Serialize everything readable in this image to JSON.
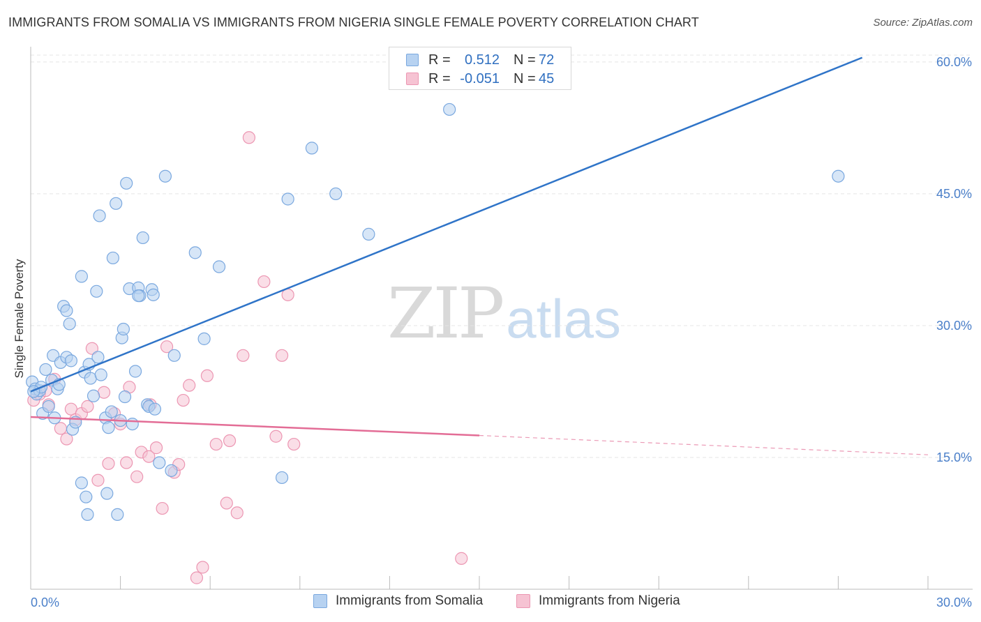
{
  "header": {
    "title": "IMMIGRANTS FROM SOMALIA VS IMMIGRANTS FROM NIGERIA SINGLE FEMALE POVERTY CORRELATION CHART",
    "source": "Source: ZipAtlas.com"
  },
  "watermark": {
    "zip": "ZIP",
    "atlas": "atlas"
  },
  "colors": {
    "somalia_fill": "#b7d2f1",
    "somalia_stroke": "#7aa8df",
    "somalia_line": "#2f74c8",
    "nigeria_fill": "#f6c3d3",
    "nigeria_stroke": "#ec96b2",
    "nigeria_line": "#e36d96",
    "axis_text": "#4a7fc9",
    "grid": "#e5e5e5"
  },
  "legend": {
    "somalia": {
      "r_label": "R =",
      "r_value": "0.512",
      "n_label": "N =",
      "n_value": "72"
    },
    "nigeria": {
      "r_label": "R =",
      "r_value": "-0.051",
      "n_label": "N =",
      "n_value": "45"
    }
  },
  "chart_data": {
    "type": "scatter",
    "title": "IMMIGRANTS FROM SOMALIA VS IMMIGRANTS FROM NIGERIA SINGLE FEMALE POVERTY CORRELATION CHART",
    "xlabel": "",
    "ylabel": "Single Female Poverty",
    "xlim": [
      0,
      30
    ],
    "ylim": [
      0,
      61.5
    ],
    "x_tick_labels": [
      "0.0%",
      "30.0%"
    ],
    "y_ticks": [
      15,
      30,
      45,
      60
    ],
    "y_tick_labels": [
      "15.0%",
      "30.0%",
      "45.0%",
      "60.0%"
    ],
    "grid": true,
    "legend_position": "top-center",
    "series": [
      {
        "name": "Immigrants from Somalia",
        "color": "#7aa8df",
        "trend": {
          "x": [
            0.0,
            27.8
          ],
          "y": [
            22.5,
            60.5
          ],
          "style": "solid"
        },
        "points": [
          [
            0.05,
            23.6
          ],
          [
            0.15,
            22.8
          ],
          [
            0.2,
            22.2
          ],
          [
            0.3,
            22.6
          ],
          [
            0.35,
            23.0
          ],
          [
            0.4,
            20.0
          ],
          [
            0.5,
            25.0
          ],
          [
            0.6,
            20.8
          ],
          [
            0.7,
            23.8
          ],
          [
            0.75,
            26.6
          ],
          [
            0.8,
            19.5
          ],
          [
            0.9,
            22.8
          ],
          [
            0.95,
            23.3
          ],
          [
            1.0,
            25.8
          ],
          [
            1.1,
            32.2
          ],
          [
            1.2,
            31.7
          ],
          [
            1.2,
            26.4
          ],
          [
            1.3,
            30.2
          ],
          [
            1.35,
            26.0
          ],
          [
            1.4,
            18.2
          ],
          [
            1.5,
            19.0
          ],
          [
            1.7,
            35.6
          ],
          [
            1.7,
            12.1
          ],
          [
            1.8,
            24.7
          ],
          [
            1.85,
            10.5
          ],
          [
            1.9,
            8.5
          ],
          [
            1.95,
            25.6
          ],
          [
            2.0,
            24.0
          ],
          [
            2.1,
            22.0
          ],
          [
            2.2,
            33.9
          ],
          [
            2.25,
            26.4
          ],
          [
            2.3,
            42.5
          ],
          [
            2.35,
            24.4
          ],
          [
            2.5,
            19.5
          ],
          [
            2.55,
            10.9
          ],
          [
            2.6,
            18.4
          ],
          [
            2.7,
            20.2
          ],
          [
            2.75,
            37.7
          ],
          [
            2.85,
            43.9
          ],
          [
            2.9,
            8.5
          ],
          [
            3.0,
            19.2
          ],
          [
            3.05,
            28.6
          ],
          [
            3.1,
            29.6
          ],
          [
            3.15,
            21.9
          ],
          [
            3.2,
            46.2
          ],
          [
            3.3,
            34.2
          ],
          [
            3.4,
            18.8
          ],
          [
            3.5,
            24.8
          ],
          [
            3.6,
            34.3
          ],
          [
            3.65,
            33.4
          ],
          [
            3.75,
            40.0
          ],
          [
            3.9,
            21.0
          ],
          [
            3.95,
            20.8
          ],
          [
            4.05,
            34.1
          ],
          [
            4.1,
            33.5
          ],
          [
            4.15,
            20.5
          ],
          [
            4.3,
            14.4
          ],
          [
            4.5,
            47.0
          ],
          [
            4.7,
            13.5
          ],
          [
            4.8,
            26.6
          ],
          [
            5.5,
            38.3
          ],
          [
            5.8,
            28.5
          ],
          [
            6.3,
            36.7
          ],
          [
            8.4,
            12.7
          ],
          [
            8.6,
            44.4
          ],
          [
            9.4,
            50.2
          ],
          [
            10.2,
            45.0
          ],
          [
            11.3,
            40.4
          ],
          [
            14.0,
            54.6
          ],
          [
            27.0,
            47.0
          ],
          [
            0.1,
            22.5
          ],
          [
            3.6,
            33.4
          ]
        ]
      },
      {
        "name": "Immigrants from Nigeria",
        "color": "#ec96b2",
        "trend": {
          "x": [
            0.0,
            15.0
          ],
          "y": [
            19.6,
            17.5
          ],
          "style": "solid",
          "dashed_to": [
            30.0,
            15.3
          ]
        },
        "points": [
          [
            0.1,
            21.5
          ],
          [
            0.3,
            22.2
          ],
          [
            0.5,
            22.6
          ],
          [
            0.6,
            21.0
          ],
          [
            0.8,
            23.9
          ],
          [
            1.0,
            18.3
          ],
          [
            1.2,
            17.1
          ],
          [
            1.35,
            20.5
          ],
          [
            1.5,
            19.3
          ],
          [
            1.7,
            20.0
          ],
          [
            1.9,
            20.8
          ],
          [
            2.05,
            27.4
          ],
          [
            2.25,
            12.4
          ],
          [
            2.45,
            22.4
          ],
          [
            2.6,
            14.3
          ],
          [
            2.8,
            20.0
          ],
          [
            3.0,
            18.8
          ],
          [
            3.2,
            14.4
          ],
          [
            3.3,
            23.0
          ],
          [
            3.55,
            12.8
          ],
          [
            3.7,
            15.6
          ],
          [
            3.95,
            15.1
          ],
          [
            4.0,
            21.0
          ],
          [
            4.2,
            16.1
          ],
          [
            4.4,
            9.2
          ],
          [
            4.55,
            27.6
          ],
          [
            4.8,
            13.3
          ],
          [
            4.95,
            14.2
          ],
          [
            5.1,
            21.5
          ],
          [
            5.3,
            23.2
          ],
          [
            5.55,
            1.3
          ],
          [
            5.75,
            2.5
          ],
          [
            5.9,
            24.3
          ],
          [
            6.2,
            16.5
          ],
          [
            6.55,
            9.8
          ],
          [
            6.65,
            16.9
          ],
          [
            6.9,
            8.7
          ],
          [
            7.1,
            26.6
          ],
          [
            7.3,
            51.4
          ],
          [
            7.8,
            35.0
          ],
          [
            8.2,
            17.4
          ],
          [
            8.4,
            26.6
          ],
          [
            8.6,
            33.5
          ],
          [
            8.8,
            16.5
          ],
          [
            14.4,
            3.5
          ]
        ]
      }
    ]
  },
  "bottom_legend": {
    "somalia_label": "Immigrants from Somalia",
    "nigeria_label": "Immigrants from Nigeria"
  }
}
